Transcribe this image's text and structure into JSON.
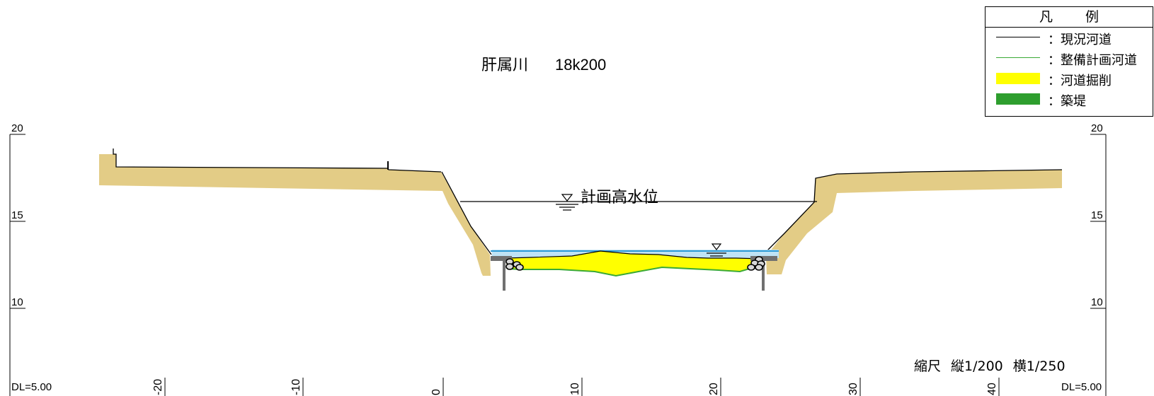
{
  "title": {
    "river": "肝属川",
    "station": "18k200"
  },
  "legend": {
    "header": "凡 例",
    "items": [
      {
        "label": "：現況河道",
        "kind": "line",
        "color": "#000000"
      },
      {
        "label": "：整備計画河道",
        "kind": "line",
        "color": "#3aaa35"
      },
      {
        "label": "：河道掘削",
        "kind": "fill",
        "color": "#ffff00"
      },
      {
        "label": "：築堤",
        "kind": "fill",
        "color": "#2e9e2e"
      }
    ]
  },
  "water_level": {
    "label": "計画高水位"
  },
  "scale": {
    "prefix": "縮尺",
    "vertical": "縦1/200",
    "horizontal": "横1/250"
  },
  "datum": {
    "left": "DL=5.00",
    "right": "DL=5.00"
  },
  "axes": {
    "elevation_ticks": [
      "20",
      "15",
      "10"
    ],
    "distance_ticks": [
      "-20",
      "-10",
      "0",
      "10",
      "20",
      "30",
      "40"
    ]
  },
  "colors": {
    "embankment": "#e3cc86",
    "excavation": "#ffff00",
    "water": "#bfe3f5",
    "water_edge": "#2e9bd6",
    "plan_channel": "#3aaa35",
    "current_channel": "#000000",
    "sheet_pile": "#707070"
  }
}
